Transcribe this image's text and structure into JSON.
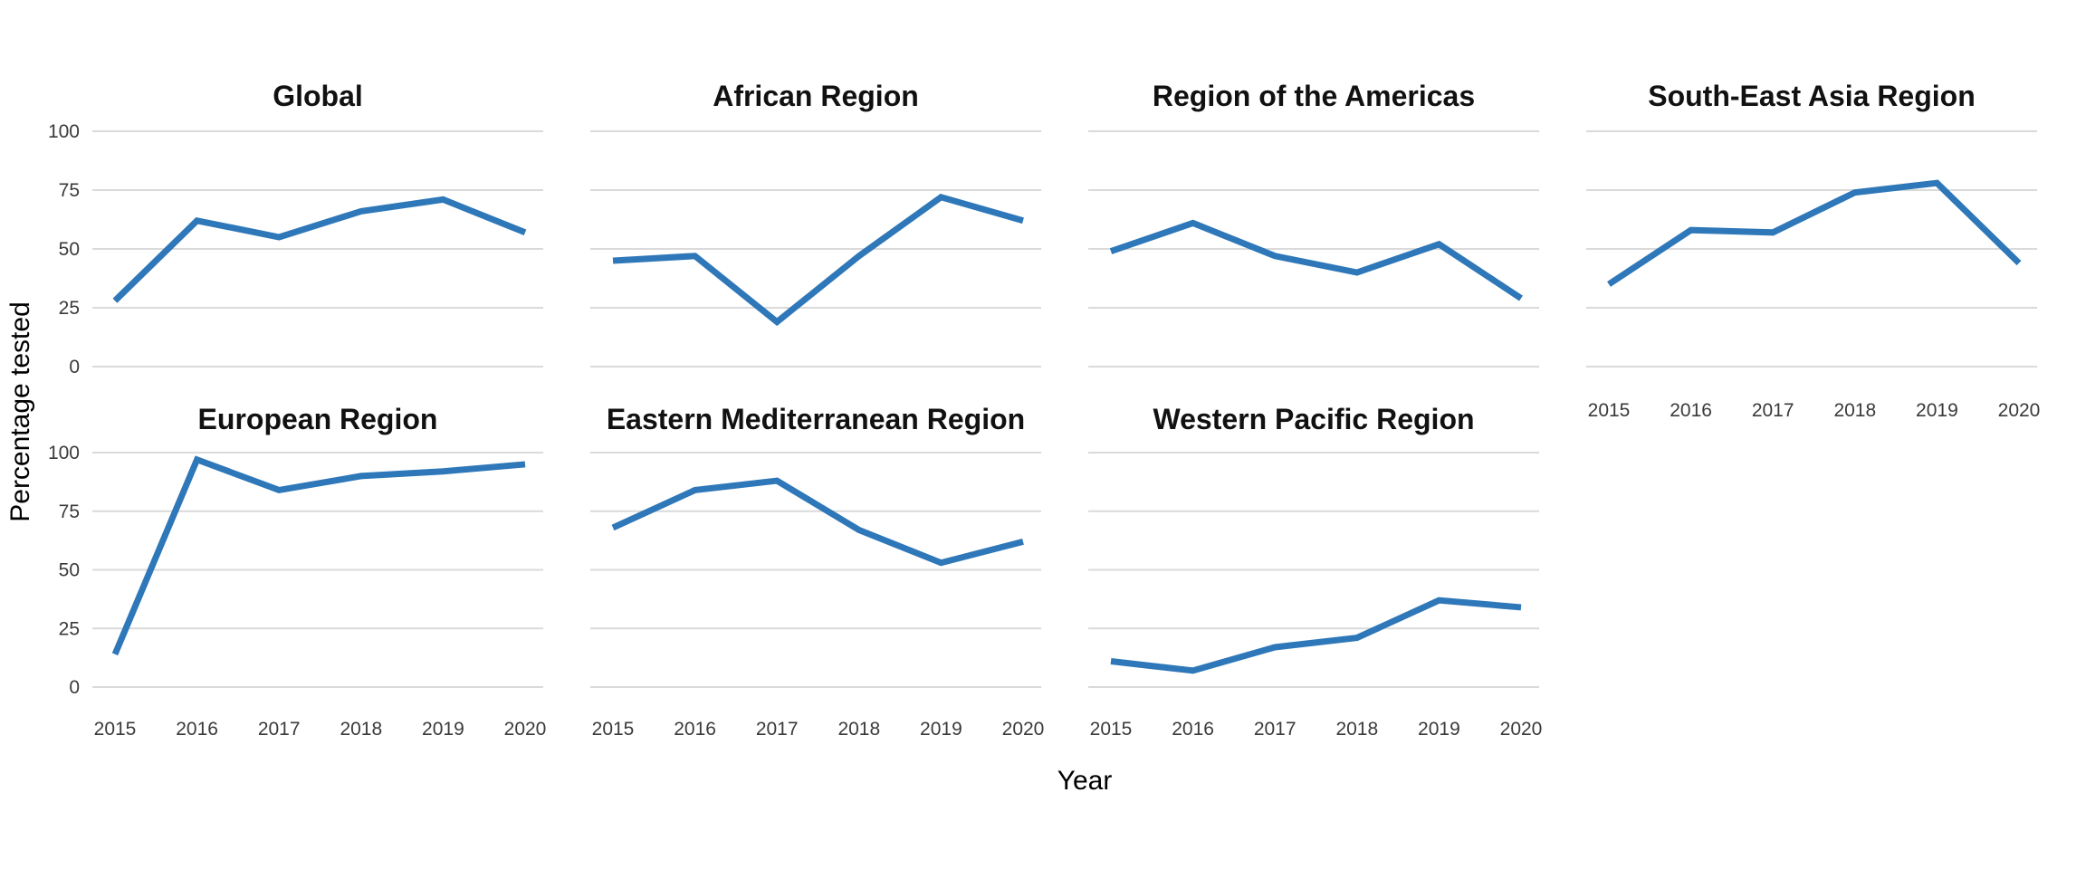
{
  "figure": {
    "background": "#ffffff",
    "xlabel": "Year",
    "ylabel": "Percentage tested"
  },
  "chart_data": {
    "type": "line",
    "layout": "facet grid, 4 columns x 2 rows, shared axes",
    "facet_order": [
      "Global",
      "African Region",
      "Region of the Americas",
      "South-East Asia Region",
      "European Region",
      "Eastern Mediterranean Region",
      "Western Pacific Region"
    ],
    "x": [
      2015,
      2016,
      2017,
      2018,
      2019,
      2020
    ],
    "x_tick_labels": [
      "2015",
      "2016",
      "2017",
      "2018",
      "2019",
      "2020"
    ],
    "xlabel": "Year",
    "ylabel": "Percentage tested",
    "ylim": [
      0,
      100
    ],
    "yticks": [
      0,
      25,
      50,
      75,
      100
    ],
    "y_tick_labels": [
      "0",
      "25",
      "50",
      "75",
      "100"
    ],
    "grid": "horizontal major gridlines only",
    "legend": "none",
    "line_color": "#2E77B8",
    "gridline_color": "#DADADA",
    "tick_label_color": "#3A3A3A",
    "title_color": "#111111",
    "facets": [
      {
        "title": "Global",
        "values": [
          28,
          62,
          55,
          66,
          71,
          57
        ]
      },
      {
        "title": "African Region",
        "values": [
          45,
          47,
          19,
          47,
          72,
          62
        ]
      },
      {
        "title": "Region of the Americas",
        "values": [
          49,
          61,
          47,
          40,
          52,
          29
        ]
      },
      {
        "title": "South-East Asia Region",
        "values": [
          35,
          58,
          57,
          74,
          78,
          44
        ]
      },
      {
        "title": "European Region",
        "values": [
          14,
          97,
          84,
          90,
          92,
          95
        ]
      },
      {
        "title": "Eastern Mediterranean Region",
        "values": [
          68,
          84,
          88,
          67,
          53,
          62
        ]
      },
      {
        "title": "Western Pacific Region",
        "values": [
          11,
          7,
          17,
          21,
          37,
          34
        ]
      }
    ]
  }
}
